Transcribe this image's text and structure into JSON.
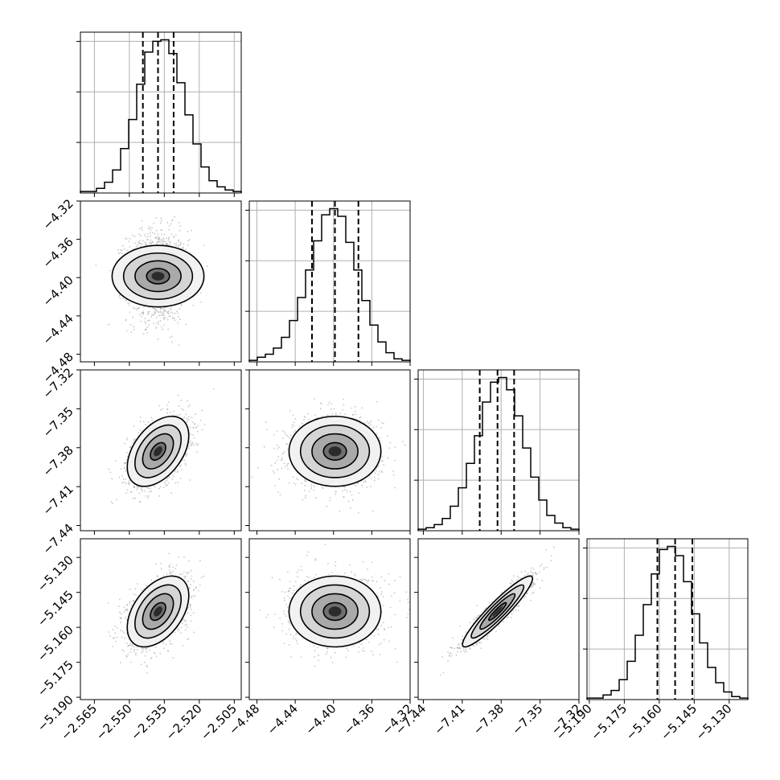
{
  "chart_data": {
    "type": "corner",
    "parameters": [
      {
        "index": 0,
        "range": [
          -2.571,
          -2.502
        ],
        "ticks": [
          -2.565,
          -2.55,
          -2.535,
          -2.52,
          -2.505
        ],
        "tick_labels": [
          "−2.565",
          "−2.550",
          "−2.535",
          "−2.520",
          "−2.505"
        ],
        "quantiles": [
          -2.5442,
          -2.5377,
          -2.531
        ],
        "median": -2.5377,
        "sigma": 0.0066
      },
      {
        "index": 1,
        "range": [
          -4.488,
          -4.32
        ],
        "ticks": [
          -4.48,
          -4.44,
          -4.4,
          -4.36,
          -4.32
        ],
        "tick_labels": [
          "−4.48",
          "−4.44",
          "−4.40",
          "−4.36",
          "−4.32"
        ],
        "quantiles": [
          -4.4225,
          -4.3985,
          -4.374
        ],
        "median": -4.3985,
        "sigma": 0.024
      },
      {
        "index": 2,
        "range": [
          -7.444,
          -7.32
        ],
        "ticks": [
          -7.44,
          -7.41,
          -7.38,
          -7.35,
          -7.32
        ],
        "tick_labels": [
          "−7.44",
          "−7.41",
          "−7.38",
          "−7.35",
          "−7.32"
        ],
        "quantiles": [
          -7.3965,
          -7.3828,
          -7.37
        ],
        "median": -7.3828,
        "sigma": 0.0135
      },
      {
        "index": 3,
        "range": [
          -5.191,
          -5.122
        ],
        "ticks": [
          -5.19,
          -5.175,
          -5.16,
          -5.145,
          -5.13
        ],
        "tick_labels": [
          "−5.190",
          "−5.175",
          "−5.160",
          "−5.145",
          "−5.130"
        ],
        "quantiles": [
          -5.1608,
          -5.1532,
          -5.1458
        ],
        "median": -5.1532,
        "sigma": 0.0076
      }
    ],
    "histograms": [
      {
        "param": 0,
        "counts": [
          1,
          1,
          3,
          7,
          15,
          29,
          48,
          71,
          92,
          99,
          100,
          91,
          72,
          51,
          32,
          17,
          8,
          4,
          2,
          1
        ]
      },
      {
        "param": 1,
        "counts": [
          1,
          3,
          5,
          9,
          16,
          27,
          42,
          60,
          79,
          96,
          100,
          95,
          78,
          60,
          40,
          24,
          13,
          6,
          2,
          1
        ]
      },
      {
        "param": 2,
        "counts": [
          1,
          2,
          4,
          8,
          16,
          28,
          44,
          62,
          84,
          97,
          100,
          92,
          75,
          54,
          35,
          20,
          10,
          5,
          2,
          1
        ]
      },
      {
        "param": 3,
        "counts": [
          1,
          1,
          3,
          6,
          13,
          25,
          42,
          62,
          82,
          98,
          100,
          94,
          77,
          56,
          37,
          21,
          11,
          5,
          2,
          1
        ]
      }
    ],
    "correlations": [
      {
        "x": 0,
        "y": 1,
        "rho": 0.0
      },
      {
        "x": 0,
        "y": 2,
        "rho": 0.45
      },
      {
        "x": 1,
        "y": 2,
        "rho": 0.0
      },
      {
        "x": 0,
        "y": 3,
        "rho": 0.45
      },
      {
        "x": 1,
        "y": 3,
        "rho": 0.0
      },
      {
        "x": 2,
        "y": 3,
        "rho": 0.93
      }
    ],
    "contour_levels_sigma": [
      0.5,
      1.0,
      1.5,
      2.0
    ],
    "grid": true,
    "colors": {
      "line": "#000000",
      "scatter": "#9a9a9a",
      "grid": "#b0b0b0",
      "background": "#ffffff"
    }
  }
}
